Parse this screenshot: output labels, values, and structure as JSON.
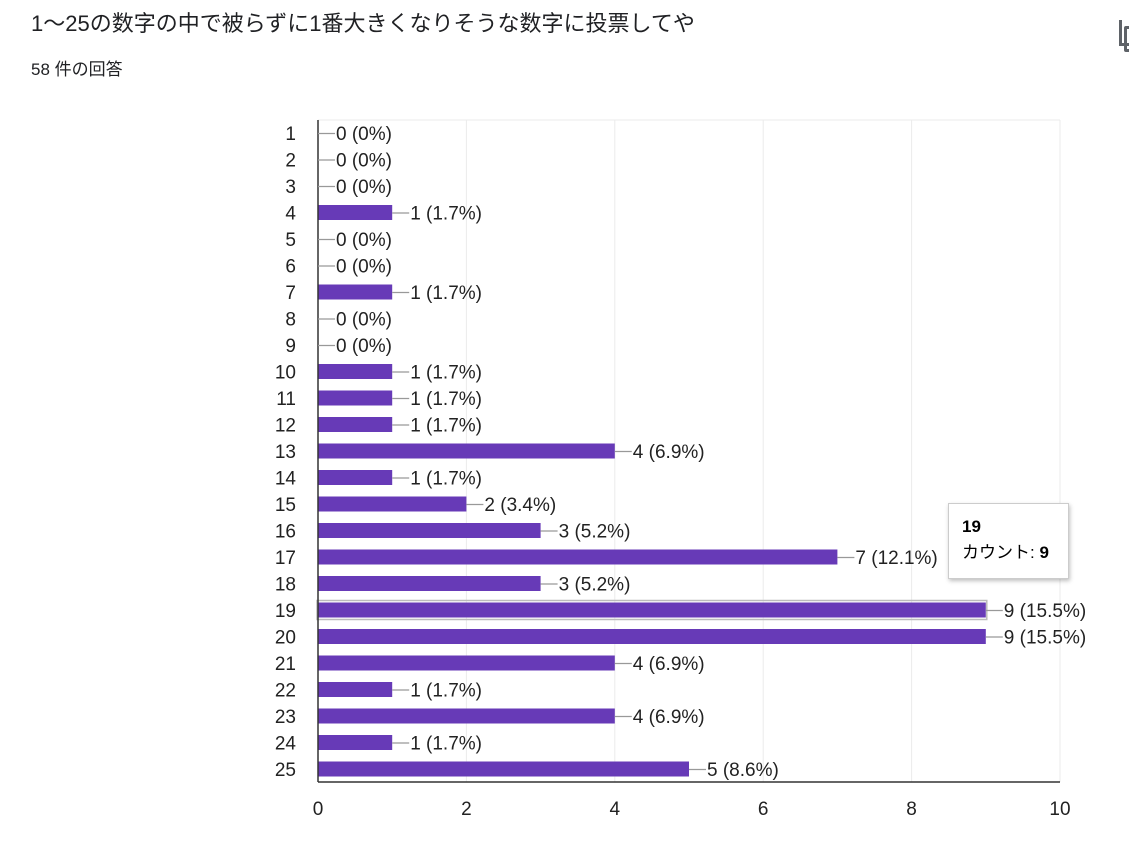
{
  "question": {
    "title": "1〜25の数字の中で被らずに1番大きくなりそうな数字に投票してや",
    "responses": "58 件の回答"
  },
  "toolbar": {
    "copy_icon": "copy-icon"
  },
  "tooltip": {
    "title": "19",
    "label": "カウント: ",
    "value": "9"
  },
  "colors": {
    "bar": "#673ab7",
    "bar_highlight": "#673ab7",
    "grid": "#ebebeb",
    "axis": "#333333",
    "text": "#222222"
  },
  "chart_data": {
    "type": "bar",
    "orientation": "horizontal",
    "total_responses": 58,
    "categories": [
      "1",
      "2",
      "3",
      "4",
      "5",
      "6",
      "7",
      "8",
      "9",
      "10",
      "11",
      "12",
      "13",
      "14",
      "15",
      "16",
      "17",
      "18",
      "19",
      "20",
      "21",
      "22",
      "23",
      "24",
      "25"
    ],
    "values": [
      0,
      0,
      0,
      1,
      0,
      0,
      1,
      0,
      0,
      1,
      1,
      1,
      4,
      1,
      2,
      3,
      7,
      3,
      9,
      9,
      4,
      1,
      4,
      1,
      5
    ],
    "data_labels": [
      "0 (0%)",
      "0 (0%)",
      "0 (0%)",
      "1 (1.7%)",
      "0 (0%)",
      "0 (0%)",
      "1 (1.7%)",
      "0 (0%)",
      "0 (0%)",
      "1 (1.7%)",
      "1 (1.7%)",
      "1 (1.7%)",
      "4 (6.9%)",
      "1 (1.7%)",
      "2 (3.4%)",
      "3 (5.2%)",
      "7 (12.1%)",
      "3 (5.2%)",
      "9 (15.5%)",
      "9 (15.5%)",
      "4 (6.9%)",
      "1 (1.7%)",
      "4 (6.9%)",
      "1 (1.7%)",
      "5 (8.6%)"
    ],
    "xlim": [
      0,
      10
    ],
    "xticks": [
      "0",
      "2",
      "4",
      "6",
      "8",
      "10"
    ],
    "grid": true,
    "highlighted_category": "19",
    "title": "",
    "xlabel": "",
    "ylabel": ""
  }
}
